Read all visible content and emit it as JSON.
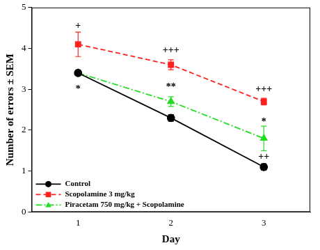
{
  "chart_data": {
    "type": "line",
    "x_label": "Day",
    "y_label": "Number of errors ± SEM",
    "categories": [
      "1",
      "2",
      "3"
    ],
    "ylim": [
      0,
      5
    ],
    "yticks": [
      0,
      1,
      2,
      3,
      4,
      5
    ],
    "grid": false,
    "legend": "lower left",
    "series": [
      {
        "name": "Control",
        "color": "#000000",
        "marker": "circle",
        "line_style": "solid",
        "values": [
          3.4,
          2.3,
          1.1
        ],
        "errors": [
          0.05,
          0.08,
          0.08
        ]
      },
      {
        "name": "Scopolamine 3 mg/kg",
        "color": "#ff2020",
        "marker": "square",
        "line_style": "dashed",
        "values": [
          4.1,
          3.6,
          2.7
        ],
        "errors": [
          0.3,
          0.12,
          0.08
        ]
      },
      {
        "name": "Piracetam 750 mg/kg + Scopolamine",
        "color": "#22dd22",
        "marker": "triangle",
        "line_style": "dashdot",
        "values": [
          3.4,
          2.7,
          1.8
        ],
        "errors": [
          0.05,
          0.12,
          0.3
        ]
      }
    ],
    "annotations": [
      {
        "text": "+",
        "x": "1",
        "y": 4.55
      },
      {
        "text": "*",
        "x": "1",
        "y": 3.0
      },
      {
        "text": "+++",
        "x": "2",
        "y": 3.95
      },
      {
        "text": "**",
        "x": "2",
        "y": 3.05
      },
      {
        "text": "+++",
        "x": "3",
        "y": 3.0
      },
      {
        "text": "*",
        "x": "3",
        "y": 2.2
      },
      {
        "text": "++",
        "x": "3",
        "y": 1.35
      }
    ]
  }
}
